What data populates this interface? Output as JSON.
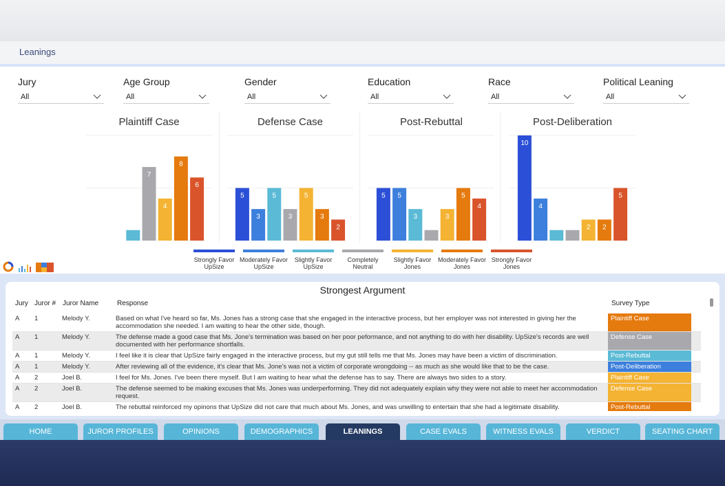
{
  "app": {
    "page_title": "Leanings"
  },
  "filters": [
    {
      "label": "Jury",
      "value": "All"
    },
    {
      "label": "Age Group",
      "value": "All"
    },
    {
      "label": "Gender",
      "value": "All"
    },
    {
      "label": "Education",
      "value": "All"
    },
    {
      "label": "Race",
      "value": "All"
    },
    {
      "label": "Political Leaning",
      "value": "All"
    }
  ],
  "legend": [
    {
      "label": "Strongly Favor UpSize",
      "color": "#2b4fd6"
    },
    {
      "label": "Moderately Favor UpSize",
      "color": "#3c7fdc"
    },
    {
      "label": "Slightly Favor UpSize",
      "color": "#5bbad6"
    },
    {
      "label": "Completely Neutral",
      "color": "#a9a9ad"
    },
    {
      "label": "Slightly Favor Jones",
      "color": "#f4b333"
    },
    {
      "label": "Moderately Favor Jones",
      "color": "#e57a0e"
    },
    {
      "label": "Strongly Favor Jones",
      "color": "#d9542b"
    }
  ],
  "chart_data": [
    {
      "type": "bar",
      "title": "Plaintiff Case",
      "categories": [
        "Strongly Favor UpSize",
        "Moderately Favor UpSize",
        "Slightly Favor UpSize",
        "Completely Neutral",
        "Slightly Favor Jones",
        "Moderately Favor Jones",
        "Strongly Favor Jones"
      ],
      "values": [
        0,
        0,
        1,
        7,
        4,
        8,
        6
      ],
      "labels": [
        "",
        "",
        "",
        "7",
        "4",
        "8",
        "6"
      ],
      "ylim": [
        0,
        10
      ]
    },
    {
      "type": "bar",
      "title": "Defense Case",
      "categories": [
        "Strongly Favor UpSize",
        "Moderately Favor UpSize",
        "Slightly Favor UpSize",
        "Completely Neutral",
        "Slightly Favor Jones",
        "Moderately Favor Jones",
        "Strongly Favor Jones"
      ],
      "values": [
        5,
        3,
        5,
        3,
        5,
        3,
        2
      ],
      "labels": [
        "5",
        "3",
        "5",
        "3",
        "5",
        "3",
        "2"
      ],
      "ylim": [
        0,
        10
      ]
    },
    {
      "type": "bar",
      "title": "Post-Rebuttal",
      "categories": [
        "Strongly Favor UpSize",
        "Moderately Favor UpSize",
        "Slightly Favor UpSize",
        "Completely Neutral",
        "Slightly Favor Jones",
        "Moderately Favor Jones",
        "Strongly Favor Jones"
      ],
      "values": [
        5,
        5,
        3,
        1,
        3,
        5,
        4
      ],
      "labels": [
        "5",
        "5",
        "3",
        "",
        "3",
        "5",
        "4"
      ],
      "ylim": [
        0,
        10
      ]
    },
    {
      "type": "bar",
      "title": "Post-Deliberation",
      "categories": [
        "Strongly Favor UpSize",
        "Moderately Favor UpSize",
        "Slightly Favor UpSize",
        "Completely Neutral",
        "Slightly Favor Jones",
        "Moderately Favor Jones",
        "Strongly Favor Jones"
      ],
      "values": [
        10,
        4,
        1,
        1,
        2,
        2,
        5
      ],
      "labels": [
        "10",
        "4",
        "",
        "",
        "2",
        "2",
        "5"
      ],
      "ylim": [
        0,
        10
      ]
    }
  ],
  "table": {
    "title": "Strongest Argument",
    "columns": [
      "Jury",
      "Juror #",
      "Juror Name",
      "Response",
      "Survey Type"
    ],
    "rows": [
      {
        "jury": "A",
        "num": "1",
        "name": "Melody Y.",
        "response": "Based on what I've heard so far, Ms. Jones has a strong case that she engaged in the interactive process, but her employer was not interested in giving her the accommodation she needed. I am waiting to hear the other side, though.",
        "type": "Plaintiff Case",
        "color": "#e57a0e"
      },
      {
        "jury": "A",
        "num": "1",
        "name": "Melody Y.",
        "response": "The defense made a good case that Ms. Jone's termination was based on her poor peformance, and not anything to do with her disability. UpSize's records are well documented with her performance shortfalls.",
        "type": "Defense Case",
        "color": "#a9a9ad"
      },
      {
        "jury": "A",
        "num": "1",
        "name": "Melody Y.",
        "response": "I feel like it is clear that UpSize fairly engaged in the interactive process, but my gut still tells me that Ms. Jones may have been a victim of discrimination.",
        "type": "Post-Rebuttal",
        "color": "#5bbad6"
      },
      {
        "jury": "A",
        "num": "1",
        "name": "Melody Y.",
        "response": "After reviewing all of the evidence, it's clear that Ms. Jone's was not a victim of corporate wrongdoing -- as much as she would like that to be the case.",
        "type": "Post-Deliberation",
        "color": "#3c7fdc"
      },
      {
        "jury": "A",
        "num": "2",
        "name": "Joel B.",
        "response": "I feel for Ms. Jones. I've been there myself. But I am waiting to hear what the defense has to say. There are always two sides to a story.",
        "type": "Plaintiff Case",
        "color": "#f4b333"
      },
      {
        "jury": "A",
        "num": "2",
        "name": "Joel B.",
        "response": "The defense seemed to be making excuses that Ms. Jones was underperforming. They did not adequately explain why they were not able to meet her accommodation request.",
        "type": "Defense Case",
        "color": "#f4b333"
      },
      {
        "jury": "A",
        "num": "2",
        "name": "Joel B.",
        "response": "The rebuttal reinforced my opinons that UpSize did not care that much about Ms. Jones, and was unwilling to entertain that she had a legitimate disability.",
        "type": "Post-Rebuttal",
        "color": "#e57a0e"
      }
    ]
  },
  "nav": [
    "HOME",
    "JUROR PROFILES",
    "OPINIONS",
    "DEMOGRAPHICS",
    "LEANINGS",
    "CASE EVALS",
    "WITNESS EVALS",
    "VERDICT",
    "SEATING CHART"
  ],
  "nav_active": "LEANINGS"
}
